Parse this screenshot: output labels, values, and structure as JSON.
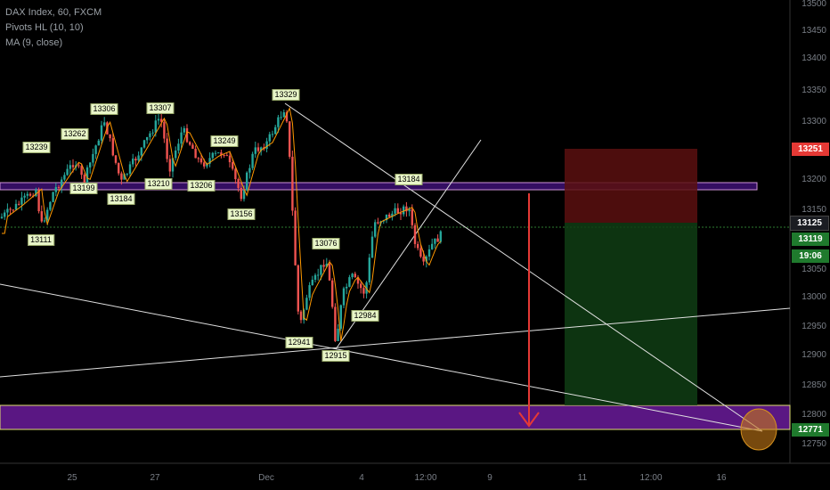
{
  "legend": {
    "symbol": "DAX Index, 60, FXCM",
    "indicator_1": "Pivots HL (10, 10)",
    "indicator_2": "MA (9, close)"
  },
  "price_scale": {
    "ticks": [
      "13500",
      "13450",
      "13400",
      "13350",
      "13300",
      "13250",
      "13200",
      "13150",
      "13100",
      "13050",
      "13000",
      "12950",
      "12900",
      "12850",
      "12800",
      "12750"
    ],
    "badges": [
      {
        "value": "13251",
        "color": "#e53935"
      },
      {
        "value": "13125",
        "color": "#1b1d22"
      },
      {
        "value": "13119",
        "color": "#1f7a2d"
      },
      {
        "value": "19:06",
        "color": "#1f7a2d"
      },
      {
        "value": "12771",
        "color": "#1f7a2d"
      }
    ]
  },
  "time_scale": {
    "ticks": [
      "25",
      "27",
      "Dec",
      "4",
      "12:00",
      "9",
      "11",
      "12:00",
      "16"
    ]
  },
  "pivots": [
    "13239",
    "13262",
    "13306",
    "13307",
    "13329",
    "13249",
    "13184",
    "13199",
    "13184",
    "13210",
    "13206",
    "13156",
    "13111",
    "13076",
    "12941",
    "12915",
    "12984"
  ],
  "colors": {
    "bull": "#26a69a",
    "bear": "#ef5350",
    "ma": "#ff9800",
    "zone": "#7b1fa2",
    "arrow": "#e53935"
  }
}
